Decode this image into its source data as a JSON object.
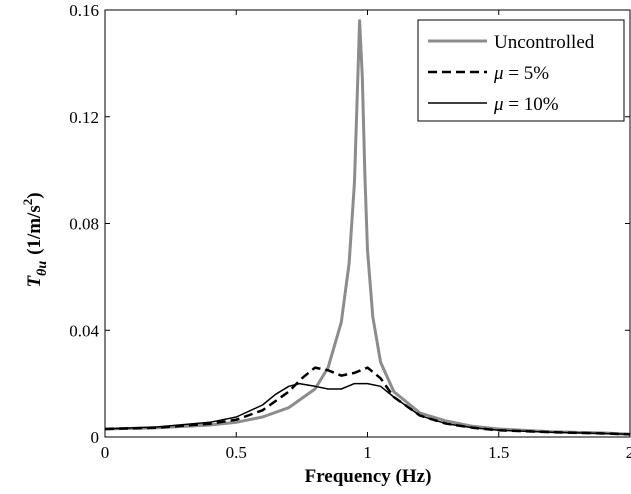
{
  "chart_data": {
    "type": "line",
    "xlabel": "Frequency (Hz)",
    "ylabel": {
      "main": "T",
      "sub": "θu",
      "units_open": "(1/m/s",
      "units_sup": "2",
      "units_close": ")"
    },
    "xlim": [
      0,
      2
    ],
    "ylim": [
      0,
      0.16
    ],
    "xticks": [
      0,
      0.5,
      1,
      1.5,
      2
    ],
    "xtick_labels": [
      "0",
      "0.5",
      "1",
      "1.5",
      "2"
    ],
    "yticks": [
      0,
      0.04,
      0.08,
      0.12,
      0.16
    ],
    "ytick_labels": [
      "0",
      "0.04",
      "0.08",
      "0.12",
      "0.16"
    ],
    "legend_position": "top-right",
    "grid": false,
    "series": [
      {
        "name": "Uncontrolled",
        "legend_prefix": "",
        "legend_suffix": "Uncontrolled",
        "color": "#8c8c8c",
        "dash": "solid",
        "x": [
          0,
          0.2,
          0.4,
          0.5,
          0.6,
          0.7,
          0.8,
          0.85,
          0.9,
          0.93,
          0.95,
          0.96,
          0.97,
          0.98,
          0.99,
          1.0,
          1.02,
          1.05,
          1.1,
          1.2,
          1.3,
          1.4,
          1.5,
          1.7,
          1.9,
          2.0
        ],
        "y": [
          0.003,
          0.0035,
          0.0045,
          0.0055,
          0.0075,
          0.011,
          0.018,
          0.026,
          0.043,
          0.065,
          0.095,
          0.125,
          0.156,
          0.135,
          0.098,
          0.07,
          0.045,
          0.028,
          0.017,
          0.009,
          0.006,
          0.004,
          0.003,
          0.002,
          0.0015,
          0.001
        ]
      },
      {
        "name": "μ = 5%",
        "legend_prefix": "μ",
        "legend_suffix": " = 5%",
        "color": "#000000",
        "dash": "dashed",
        "x": [
          0,
          0.2,
          0.4,
          0.5,
          0.6,
          0.7,
          0.75,
          0.8,
          0.85,
          0.9,
          0.95,
          1.0,
          1.05,
          1.1,
          1.2,
          1.3,
          1.4,
          1.5,
          1.7,
          1.9,
          2.0
        ],
        "y": [
          0.003,
          0.0035,
          0.005,
          0.0065,
          0.01,
          0.017,
          0.022,
          0.026,
          0.025,
          0.023,
          0.024,
          0.026,
          0.022,
          0.015,
          0.008,
          0.005,
          0.0035,
          0.0025,
          0.0018,
          0.0013,
          0.001
        ]
      },
      {
        "name": "μ = 10%",
        "legend_prefix": "μ",
        "legend_suffix": " = 10%",
        "color": "#000000",
        "dash": "solid-thin",
        "x": [
          0,
          0.2,
          0.4,
          0.5,
          0.6,
          0.65,
          0.7,
          0.74,
          0.8,
          0.85,
          0.9,
          0.95,
          1.0,
          1.05,
          1.1,
          1.2,
          1.3,
          1.4,
          1.5,
          1.7,
          1.9,
          2.0
        ],
        "y": [
          0.003,
          0.0038,
          0.0055,
          0.0075,
          0.012,
          0.016,
          0.019,
          0.02,
          0.019,
          0.018,
          0.018,
          0.02,
          0.02,
          0.019,
          0.015,
          0.008,
          0.005,
          0.0035,
          0.0025,
          0.0018,
          0.0013,
          0.001
        ]
      }
    ]
  }
}
